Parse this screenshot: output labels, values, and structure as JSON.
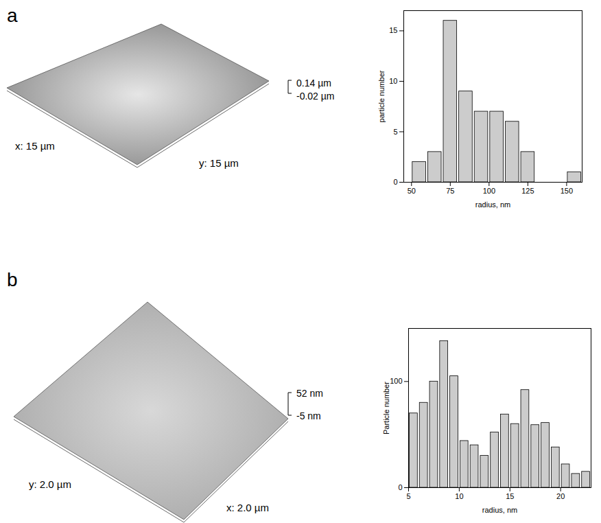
{
  "chart_data": [
    {
      "type": "histogram",
      "x_label": "radius, nm",
      "y_label": "particle number",
      "bins": [
        50,
        60,
        70,
        80,
        90,
        100,
        110,
        120,
        130,
        140,
        150,
        160
      ],
      "values": [
        2,
        3,
        16,
        9,
        7,
        7,
        6,
        3,
        0,
        0,
        1
      ],
      "color": "#cccccc",
      "xlim": [
        45,
        160
      ],
      "xticks": [
        50,
        75,
        100,
        125,
        150
      ],
      "ylim": [
        0,
        17
      ],
      "yticks": [
        0,
        5,
        10,
        15
      ]
    },
    {
      "type": "histogram",
      "x_label": "radius, nm",
      "y_label": "Particle number",
      "bins": [
        5,
        6,
        7,
        8,
        9,
        10,
        11,
        12,
        13,
        14,
        15,
        16,
        17,
        18,
        19,
        20,
        21,
        22,
        23
      ],
      "values": [
        70,
        80,
        100,
        138,
        105,
        44,
        40,
        30,
        52,
        69,
        60,
        92,
        59,
        61,
        38,
        22,
        13,
        15
      ],
      "color": "#cccccc",
      "xlim": [
        5,
        23
      ],
      "xticks": [
        5,
        10,
        15,
        20
      ],
      "ylim": [
        0,
        150
      ],
      "yticks": [
        0,
        100
      ]
    }
  ],
  "images": [
    {
      "panel": "a",
      "x_label": "x: 15 µm",
      "y_label": "y: 15 µm",
      "z_max": "0.14 µm",
      "z_min": "-0.02 µm"
    },
    {
      "panel": "b",
      "x_label": "x: 2.0 µm",
      "y_label": "y: 2.0 µm",
      "z_max": "52 nm",
      "z_min": "-5 nm"
    }
  ]
}
